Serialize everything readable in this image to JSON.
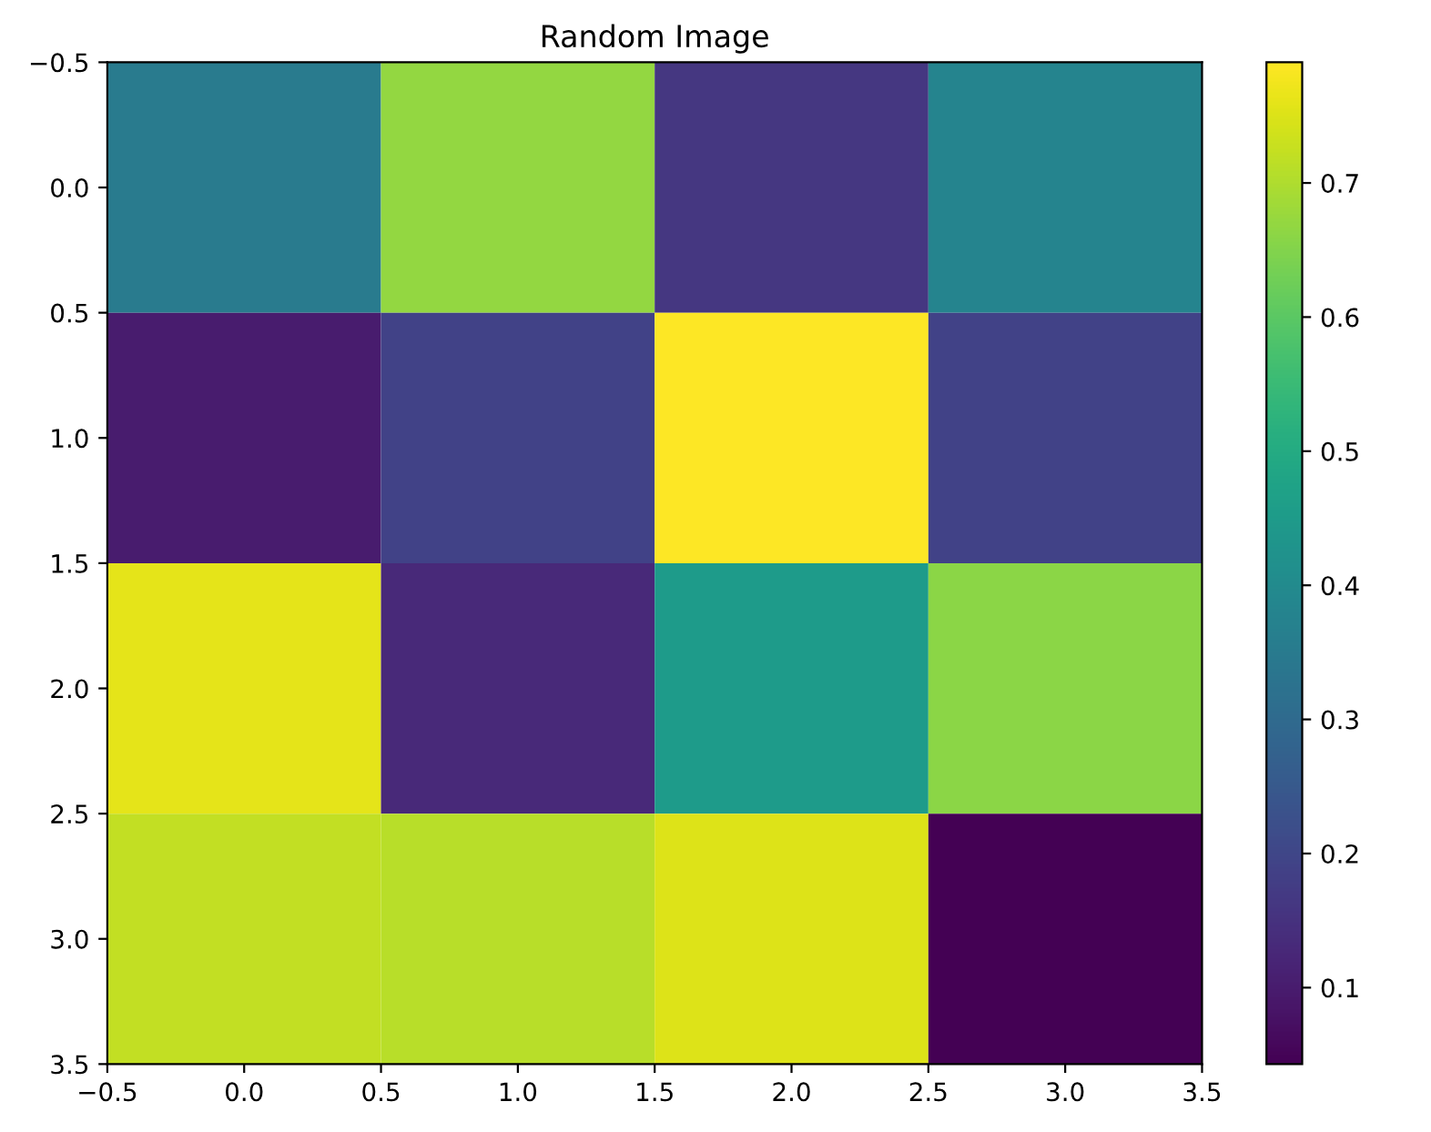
{
  "chart_data": {
    "type": "heatmap",
    "title": "Random Image",
    "cells": [
      [
        0.35,
        0.67,
        0.16,
        0.38
      ],
      [
        0.1,
        0.19,
        0.79,
        0.19
      ],
      [
        0.76,
        0.13,
        0.45,
        0.66
      ],
      [
        0.72,
        0.71,
        0.75,
        0.043
      ]
    ],
    "xlim": [
      -0.5,
      3.5
    ],
    "xticks": [
      {
        "value": -0.5,
        "label": "−0.5"
      },
      {
        "value": 0,
        "label": "0.0"
      },
      {
        "value": 0.5,
        "label": "0.5"
      },
      {
        "value": 1,
        "label": "1.0"
      },
      {
        "value": 1.5,
        "label": "1.5"
      },
      {
        "value": 2,
        "label": "2.0"
      },
      {
        "value": 2.5,
        "label": "2.5"
      },
      {
        "value": 3,
        "label": "3.0"
      },
      {
        "value": 3.5,
        "label": "3.5"
      }
    ],
    "ylim": [
      3.5,
      -0.5
    ],
    "yticks": [
      {
        "value": -0.5,
        "label": "−0.5"
      },
      {
        "value": 0,
        "label": "0.0"
      },
      {
        "value": 0.5,
        "label": "0.5"
      },
      {
        "value": 1,
        "label": "1.0"
      },
      {
        "value": 1.5,
        "label": "1.5"
      },
      {
        "value": 2,
        "label": "2.0"
      },
      {
        "value": 2.5,
        "label": "2.5"
      },
      {
        "value": 3,
        "label": "3.0"
      },
      {
        "value": 3.5,
        "label": "3.5"
      }
    ],
    "clim": [
      0.043,
      0.79
    ],
    "cticks": [
      0.1,
      0.2,
      0.3,
      0.4,
      0.5,
      0.6,
      0.7
    ]
  }
}
